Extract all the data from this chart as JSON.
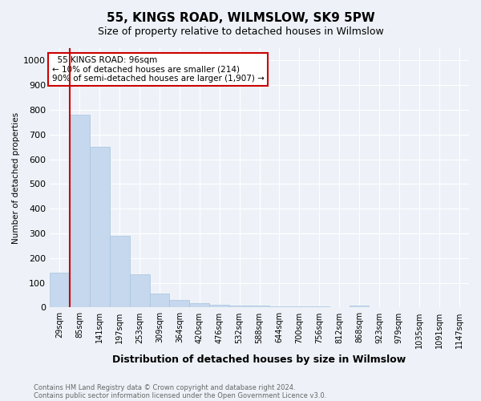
{
  "title": "55, KINGS ROAD, WILMSLOW, SK9 5PW",
  "subtitle": "Size of property relative to detached houses in Wilmslow",
  "xlabel": "Distribution of detached houses by size in Wilmslow",
  "ylabel": "Number of detached properties",
  "footnote1": "Contains HM Land Registry data © Crown copyright and database right 2024.",
  "footnote2": "Contains public sector information licensed under the Open Government Licence v3.0.",
  "categories": [
    "29sqm",
    "85sqm",
    "141sqm",
    "197sqm",
    "253sqm",
    "309sqm",
    "364sqm",
    "420sqm",
    "476sqm",
    "532sqm",
    "588sqm",
    "644sqm",
    "700sqm",
    "756sqm",
    "812sqm",
    "868sqm",
    "923sqm",
    "979sqm",
    "1035sqm",
    "1091sqm",
    "1147sqm"
  ],
  "values": [
    140,
    780,
    650,
    290,
    135,
    55,
    30,
    18,
    12,
    8,
    7,
    5,
    5,
    4,
    3,
    8,
    2,
    1,
    0,
    0,
    1
  ],
  "bar_color": "#c5d8ed",
  "bar_edge_color": "#a8c4de",
  "vline_color": "#cc0000",
  "vline_x_index": 1,
  "annotation_text": "  55 KINGS ROAD: 96sqm\n← 10% of detached houses are smaller (214)\n90% of semi-detached houses are larger (1,907) →",
  "annotation_box_color": "#ffffff",
  "annotation_box_edge": "#cc0000",
  "ylim": [
    0,
    1050
  ],
  "yticks": [
    0,
    100,
    200,
    300,
    400,
    500,
    600,
    700,
    800,
    900,
    1000
  ],
  "background_color": "#eef2f8",
  "grid_color": "#ffffff",
  "title_fontsize": 11,
  "subtitle_fontsize": 9,
  "xlabel_fontsize": 9,
  "ylabel_fontsize": 7.5,
  "tick_fontsize": 7,
  "annot_fontsize": 7.5,
  "footnote_fontsize": 6,
  "footnote_color": "#666666"
}
